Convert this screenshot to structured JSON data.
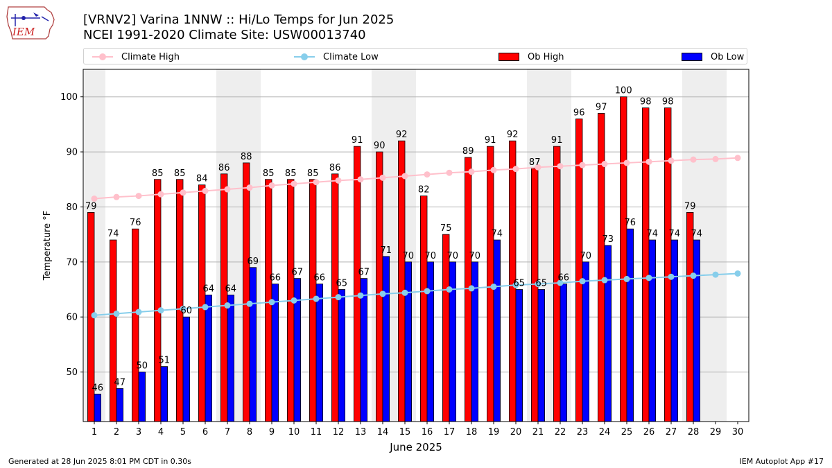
{
  "logo": {
    "text": "IEM"
  },
  "title_line1": "[VRNV2] Varina 1NNW :: Hi/Lo Temps for Jun 2025",
  "title_line2": "NCEI 1991-2020 Climate Site: USW00013740",
  "legend": {
    "climate_high": "Climate High",
    "climate_low": "Climate Low",
    "ob_high": "Ob High",
    "ob_low": "Ob Low"
  },
  "footer": {
    "left": "Generated at 28 Jun 2025 8:01 PM CDT in 0.30s",
    "right": "IEM Autoplot App #17"
  },
  "colors": {
    "ob_high": "#ff0000",
    "ob_low": "#0000ff",
    "climate_high": "#ffc0cb",
    "climate_low": "#87ceeb",
    "weekend_shade": "#eeeeee",
    "grid": "#b0b0b0"
  },
  "chart_data": {
    "type": "bar",
    "xlabel": "June 2025",
    "ylabel": "Temperature °F",
    "ylim": [
      41,
      105
    ],
    "yticks": [
      50,
      60,
      70,
      80,
      90,
      100
    ],
    "grid": "horizontal",
    "legend_position": "top",
    "days": [
      1,
      2,
      3,
      4,
      5,
      6,
      7,
      8,
      9,
      10,
      11,
      12,
      13,
      14,
      15,
      16,
      17,
      18,
      19,
      20,
      21,
      22,
      23,
      24,
      25,
      26,
      27,
      28,
      29,
      30
    ],
    "weekend_days": [
      1,
      7,
      8,
      14,
      15,
      21,
      22,
      28,
      29
    ],
    "series": [
      {
        "name": "Ob High",
        "kind": "bar",
        "values": [
          79,
          74,
          76,
          85,
          85,
          84,
          86,
          88,
          85,
          85,
          85,
          86,
          91,
          90,
          92,
          82,
          75,
          89,
          91,
          92,
          87,
          91,
          96,
          97,
          100,
          98,
          98,
          79
        ]
      },
      {
        "name": "Ob Low",
        "kind": "bar",
        "values": [
          46,
          47,
          50,
          51,
          60,
          64,
          64,
          69,
          66,
          67,
          66,
          65,
          67,
          71,
          70,
          70,
          70,
          70,
          74,
          65,
          65,
          66,
          70,
          73,
          76,
          74,
          74,
          74
        ]
      },
      {
        "name": "Climate High",
        "kind": "line",
        "values": [
          81.5,
          81.8,
          82.0,
          82.3,
          82.6,
          82.9,
          83.2,
          83.5,
          83.9,
          84.2,
          84.5,
          84.8,
          85.0,
          85.3,
          85.6,
          85.9,
          86.2,
          86.4,
          86.7,
          86.9,
          87.2,
          87.4,
          87.6,
          87.8,
          88.0,
          88.2,
          88.4,
          88.6,
          88.7,
          88.9
        ]
      },
      {
        "name": "Climate Low",
        "kind": "line",
        "values": [
          60.3,
          60.6,
          60.9,
          61.2,
          61.5,
          61.8,
          62.1,
          62.4,
          62.7,
          63.0,
          63.3,
          63.6,
          63.9,
          64.2,
          64.4,
          64.7,
          65.0,
          65.2,
          65.5,
          65.8,
          66.0,
          66.2,
          66.5,
          66.7,
          66.9,
          67.1,
          67.3,
          67.5,
          67.7,
          67.9
        ]
      }
    ]
  }
}
